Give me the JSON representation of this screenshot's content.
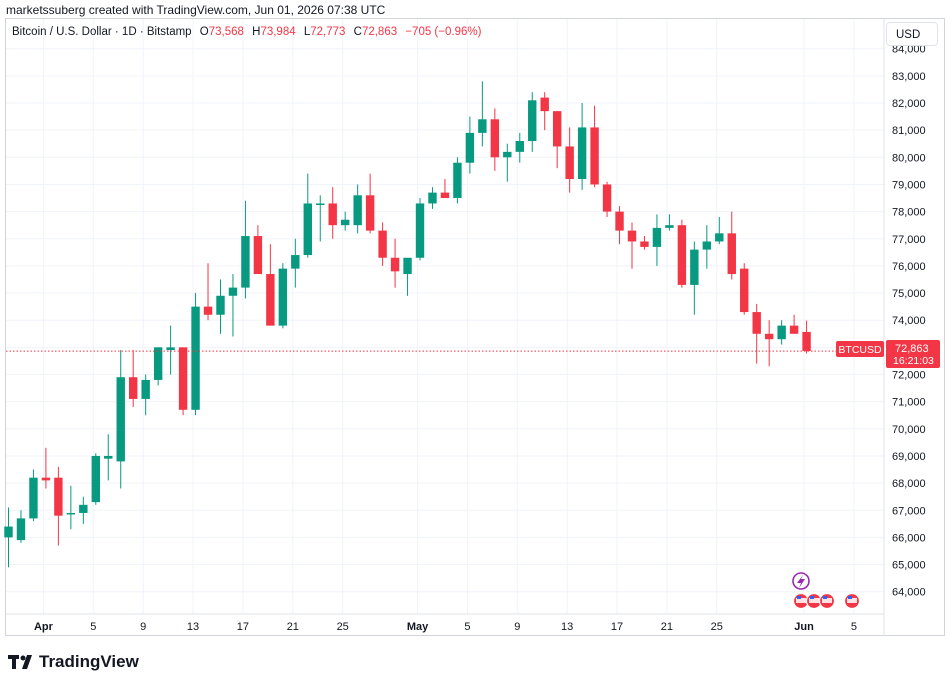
{
  "header": {
    "credit": "marketssuberg created with TradingView.com, Jun 01, 2026 07:38 UTC"
  },
  "legend": {
    "symbol": "Bitcoin / U.S. Dollar · 1D · Bitstamp",
    "o_label": "O",
    "o_value": "73,568",
    "h_label": "H",
    "h_value": "73,984",
    "l_label": "L",
    "l_value": "72,773",
    "c_label": "C",
    "c_value": "72,863",
    "change": "−705 (−0.96%)"
  },
  "currency": "USD",
  "price_badge": {
    "symbol": "BTCUSD",
    "price": "72,863",
    "countdown": "16:21:03"
  },
  "brand": {
    "name": "TradingView"
  },
  "colors": {
    "up": "#089981",
    "down": "#f23645",
    "grid": "#f0f3fa"
  },
  "chart_data": {
    "type": "candlestick",
    "y_axis": {
      "min": 63000,
      "max": 84000,
      "ticks": [
        "64,000",
        "65,000",
        "66,000",
        "67,000",
        "68,000",
        "69,000",
        "70,000",
        "71,000",
        "72,000",
        "73,000",
        "74,000",
        "75,000",
        "76,000",
        "77,000",
        "78,000",
        "79,000",
        "80,000",
        "81,000",
        "82,000",
        "83,000",
        "84,000"
      ]
    },
    "x_ticks": [
      {
        "label": "Apr",
        "day": 1
      },
      {
        "label": "5",
        "day": 5
      },
      {
        "label": "9",
        "day": 9
      },
      {
        "label": "13",
        "day": 13
      },
      {
        "label": "17",
        "day": 17
      },
      {
        "label": "21",
        "day": 21
      },
      {
        "label": "25",
        "day": 25
      },
      {
        "label": "May",
        "day": 31
      },
      {
        "label": "5",
        "day": 35
      },
      {
        "label": "9",
        "day": 39
      },
      {
        "label": "13",
        "day": 43
      },
      {
        "label": "17",
        "day": 47
      },
      {
        "label": "21",
        "day": 51
      },
      {
        "label": "25",
        "day": 55
      },
      {
        "label": "Jun",
        "day": 62
      },
      {
        "label": "5",
        "day": 66
      }
    ],
    "last_price": 72863,
    "candles": [
      {
        "o": 66000,
        "h": 67100,
        "l": 64900,
        "c": 66400
      },
      {
        "o": 65900,
        "h": 67000,
        "l": 65800,
        "c": 66700
      },
      {
        "o": 66700,
        "h": 68500,
        "l": 66600,
        "c": 68200
      },
      {
        "o": 68200,
        "h": 69300,
        "l": 67800,
        "c": 68100
      },
      {
        "o": 68200,
        "h": 68600,
        "l": 65700,
        "c": 66800
      },
      {
        "o": 66900,
        "h": 67900,
        "l": 66300,
        "c": 66900
      },
      {
        "o": 66900,
        "h": 67500,
        "l": 66500,
        "c": 67200
      },
      {
        "o": 67300,
        "h": 69100,
        "l": 67200,
        "c": 69000
      },
      {
        "o": 68900,
        "h": 69800,
        "l": 68100,
        "c": 69000
      },
      {
        "o": 68800,
        "h": 72900,
        "l": 67800,
        "c": 71900
      },
      {
        "o": 71900,
        "h": 72900,
        "l": 70800,
        "c": 71100
      },
      {
        "o": 71100,
        "h": 72000,
        "l": 70500,
        "c": 71800
      },
      {
        "o": 71800,
        "h": 73000,
        "l": 71600,
        "c": 73000
      },
      {
        "o": 72900,
        "h": 73800,
        "l": 72000,
        "c": 73000
      },
      {
        "o": 73000,
        "h": 73000,
        "l": 70500,
        "c": 70700
      },
      {
        "o": 70700,
        "h": 75000,
        "l": 70500,
        "c": 74500
      },
      {
        "o": 74500,
        "h": 76100,
        "l": 74000,
        "c": 74200
      },
      {
        "o": 74200,
        "h": 75500,
        "l": 73500,
        "c": 74900
      },
      {
        "o": 74900,
        "h": 75700,
        "l": 73400,
        "c": 75200
      },
      {
        "o": 75200,
        "h": 78400,
        "l": 74800,
        "c": 77100
      },
      {
        "o": 77100,
        "h": 77500,
        "l": 75700,
        "c": 75700
      },
      {
        "o": 75700,
        "h": 76800,
        "l": 73800,
        "c": 73800
      },
      {
        "o": 73800,
        "h": 76100,
        "l": 73700,
        "c": 75900
      },
      {
        "o": 75900,
        "h": 77000,
        "l": 75200,
        "c": 76400
      },
      {
        "o": 76400,
        "h": 79400,
        "l": 76300,
        "c": 78300
      },
      {
        "o": 78300,
        "h": 78600,
        "l": 76900,
        "c": 78300
      },
      {
        "o": 78300,
        "h": 78900,
        "l": 77000,
        "c": 77500
      },
      {
        "o": 77500,
        "h": 78000,
        "l": 77300,
        "c": 77700
      },
      {
        "o": 77500,
        "h": 79000,
        "l": 77200,
        "c": 78600
      },
      {
        "o": 78600,
        "h": 79400,
        "l": 77200,
        "c": 77300
      },
      {
        "o": 77300,
        "h": 77600,
        "l": 76000,
        "c": 76300
      },
      {
        "o": 76300,
        "h": 77000,
        "l": 75200,
        "c": 75800
      },
      {
        "o": 75700,
        "h": 76100,
        "l": 74900,
        "c": 76300
      },
      {
        "o": 76300,
        "h": 78500,
        "l": 76200,
        "c": 78300
      },
      {
        "o": 78300,
        "h": 78900,
        "l": 78100,
        "c": 78700
      },
      {
        "o": 78700,
        "h": 79200,
        "l": 78500,
        "c": 78500
      },
      {
        "o": 78500,
        "h": 80000,
        "l": 78300,
        "c": 79800
      },
      {
        "o": 79800,
        "h": 81500,
        "l": 79400,
        "c": 80900
      },
      {
        "o": 80900,
        "h": 82800,
        "l": 80400,
        "c": 81400
      },
      {
        "o": 81400,
        "h": 81800,
        "l": 79500,
        "c": 80000
      },
      {
        "o": 80000,
        "h": 80500,
        "l": 79100,
        "c": 80200
      },
      {
        "o": 80200,
        "h": 80900,
        "l": 79800,
        "c": 80600
      },
      {
        "o": 80600,
        "h": 82400,
        "l": 80200,
        "c": 82100
      },
      {
        "o": 82200,
        "h": 82400,
        "l": 81000,
        "c": 81700
      },
      {
        "o": 81700,
        "h": 81700,
        "l": 79600,
        "c": 80400
      },
      {
        "o": 80400,
        "h": 81100,
        "l": 78700,
        "c": 79200
      },
      {
        "o": 79200,
        "h": 82000,
        "l": 78800,
        "c": 81100
      },
      {
        "o": 81100,
        "h": 81900,
        "l": 78900,
        "c": 79000
      },
      {
        "o": 79000,
        "h": 79100,
        "l": 77800,
        "c": 78000
      },
      {
        "o": 78000,
        "h": 78200,
        "l": 76800,
        "c": 77300
      },
      {
        "o": 77300,
        "h": 77600,
        "l": 75900,
        "c": 76900
      },
      {
        "o": 76900,
        "h": 77100,
        "l": 76600,
        "c": 76700
      },
      {
        "o": 76700,
        "h": 77900,
        "l": 76000,
        "c": 77400
      },
      {
        "o": 77400,
        "h": 77900,
        "l": 77300,
        "c": 77500
      },
      {
        "o": 77500,
        "h": 77700,
        "l": 75200,
        "c": 75300
      },
      {
        "o": 75300,
        "h": 76900,
        "l": 74200,
        "c": 76600
      },
      {
        "o": 76600,
        "h": 77500,
        "l": 75900,
        "c": 76900
      },
      {
        "o": 76900,
        "h": 77800,
        "l": 76800,
        "c": 77200
      },
      {
        "o": 77200,
        "h": 78000,
        "l": 75500,
        "c": 75700
      },
      {
        "o": 75900,
        "h": 76100,
        "l": 74200,
        "c": 74300
      },
      {
        "o": 74300,
        "h": 74600,
        "l": 72400,
        "c": 73500
      },
      {
        "o": 73500,
        "h": 74000,
        "l": 72300,
        "c": 73300
      },
      {
        "o": 73300,
        "h": 74000,
        "l": 73100,
        "c": 73800
      },
      {
        "o": 73800,
        "h": 74200,
        "l": 73500,
        "c": 73500
      },
      {
        "o": 73568,
        "h": 73984,
        "l": 72773,
        "c": 72863
      }
    ]
  }
}
